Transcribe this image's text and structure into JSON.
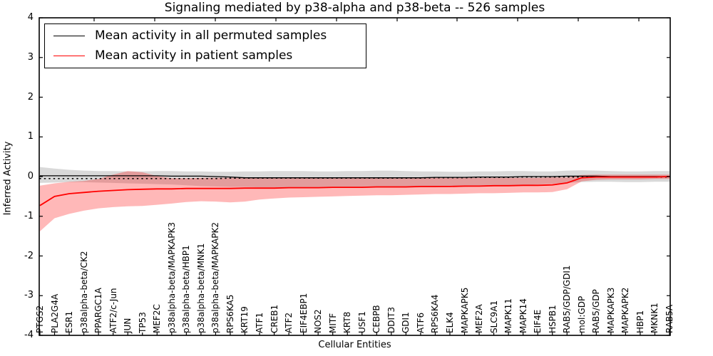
{
  "chart_data": {
    "type": "line",
    "title": "Signaling mediated by p38-alpha and p38-beta -- 526 samples",
    "xlabel": "Cellular Entities",
    "ylabel": "Inferred Activity",
    "ylim": [
      -4,
      4
    ],
    "yticks": [
      "4",
      "3",
      "2",
      "1",
      "0",
      "-1",
      "-2",
      "-3",
      "-4"
    ],
    "grid": false,
    "legend": {
      "position": "upper left",
      "entries": [
        {
          "label": "Mean activity in all permuted samples",
          "color": "#000000"
        },
        {
          "label": "Mean activity in patient samples",
          "color": "#ff0000"
        }
      ]
    },
    "categories": [
      "PTGS2",
      "PLA2G4A",
      "ESR1",
      "p38alpha-beta/CK2",
      "PPARGC1A",
      "ATF2/c-Jun",
      "JUN",
      "TP53",
      "MEF2C",
      "p38alpha-beta/MAPKAPK3",
      "p38alpha-beta/HBP1",
      "p38alpha-beta/MNK1",
      "p38alpha-beta/MAPKAPK2",
      "RPS6KA5",
      "KRT19",
      "ATF1",
      "CREB1",
      "ATF2",
      "EIF4EBP1",
      "NOS2",
      "MITF",
      "KRT8",
      "USF1",
      "CEBPB",
      "DDIT3",
      "GDI1",
      "ATF6",
      "RPS6KA4",
      "ELK4",
      "MAPKAPK5",
      "MEF2A",
      "SLC9A1",
      "MAPK11",
      "MAPK14",
      "EIF4E",
      "HSPB1",
      "RAB5/GDP/GDI1",
      "mol:GDP",
      "RAB5/GDP",
      "MAPKAPK3",
      "MAPKAPK2",
      "HBP1",
      "MKNK1",
      "RAB5A"
    ],
    "bands": [
      {
        "name": "permuted-samples-band",
        "fill": "rgba(128,128,128,0.30)",
        "upper": [
          0.24,
          0.2,
          0.17,
          0.15,
          0.14,
          0.14,
          0.13,
          0.13,
          0.14,
          0.14,
          0.13,
          0.13,
          0.12,
          0.12,
          0.13,
          0.13,
          0.14,
          0.14,
          0.14,
          0.13,
          0.13,
          0.14,
          0.14,
          0.15,
          0.15,
          0.14,
          0.13,
          0.13,
          0.12,
          0.12,
          0.13,
          0.13,
          0.14,
          0.14,
          0.13,
          0.13,
          0.15,
          0.16,
          0.15,
          0.14,
          0.13,
          0.13,
          0.14,
          0.14
        ],
        "lower": [
          -0.16,
          -0.15,
          -0.14,
          -0.14,
          -0.15,
          -0.16,
          -0.17,
          -0.18,
          -0.19,
          -0.2,
          -0.22,
          -0.24,
          -0.25,
          -0.26,
          -0.26,
          -0.27,
          -0.27,
          -0.27,
          -0.28,
          -0.28,
          -0.28,
          -0.28,
          -0.28,
          -0.28,
          -0.28,
          -0.28,
          -0.27,
          -0.27,
          -0.26,
          -0.26,
          -0.25,
          -0.24,
          -0.23,
          -0.22,
          -0.2,
          -0.18,
          -0.16,
          -0.14,
          -0.13,
          -0.13,
          -0.14,
          -0.14,
          -0.13,
          -0.13
        ]
      },
      {
        "name": "patient-samples-band",
        "fill": "rgba(255,0,0,0.28)",
        "upper": [
          -0.23,
          -0.17,
          -0.13,
          -0.11,
          -0.06,
          0.05,
          0.14,
          0.11,
          0.01,
          -0.04,
          -0.04,
          -0.03,
          -0.03,
          -0.03,
          -0.03,
          -0.03,
          -0.03,
          -0.03,
          -0.03,
          -0.03,
          -0.03,
          -0.03,
          -0.03,
          -0.03,
          -0.03,
          -0.03,
          -0.03,
          -0.03,
          -0.03,
          -0.03,
          -0.03,
          -0.03,
          -0.03,
          -0.03,
          -0.03,
          -0.02,
          -0.02,
          0.04,
          0.05,
          0.05,
          0.05,
          0.05,
          0.05,
          0.05
        ],
        "lower": [
          -1.38,
          -1.05,
          -0.94,
          -0.86,
          -0.8,
          -0.77,
          -0.75,
          -0.74,
          -0.71,
          -0.68,
          -0.64,
          -0.62,
          -0.63,
          -0.65,
          -0.63,
          -0.58,
          -0.55,
          -0.53,
          -0.52,
          -0.51,
          -0.5,
          -0.49,
          -0.48,
          -0.47,
          -0.47,
          -0.46,
          -0.45,
          -0.44,
          -0.44,
          -0.43,
          -0.42,
          -0.42,
          -0.41,
          -0.4,
          -0.4,
          -0.39,
          -0.32,
          -0.12,
          -0.08,
          -0.07,
          -0.07,
          -0.07,
          -0.06,
          -0.06
        ]
      }
    ],
    "lines": [
      {
        "name": "Mean activity in all permuted samples (dotted companion)",
        "id": "black-dotted-line",
        "color": "#000000",
        "width": 1.7,
        "style": "dotted",
        "values": [
          -0.05,
          -0.05,
          -0.05,
          -0.05,
          -0.05,
          -0.05,
          -0.05,
          -0.05,
          -0.05,
          -0.05,
          -0.05,
          -0.05,
          -0.05,
          -0.04,
          -0.04,
          -0.04,
          -0.04,
          -0.04,
          -0.04,
          -0.04,
          -0.04,
          -0.04,
          -0.04,
          -0.04,
          -0.04,
          -0.04,
          -0.04,
          -0.03,
          -0.03,
          -0.03,
          -0.02,
          -0.02,
          -0.02,
          -0.01,
          -0.01,
          -0.01,
          -0.01,
          -0.01,
          -0.01,
          -0.01,
          -0.01,
          -0.01,
          -0.01,
          -0.01
        ]
      },
      {
        "name": "Mean activity in all permuted samples",
        "id": "black-mean-line",
        "color": "#000000",
        "width": 1.3,
        "style": "solid",
        "values": [
          0.02,
          0.02,
          0.02,
          0.02,
          0.02,
          0.02,
          0.02,
          0.02,
          0.02,
          0.01,
          0.01,
          0.01,
          0.0,
          -0.01,
          -0.03,
          -0.03,
          -0.03,
          -0.03,
          -0.03,
          -0.03,
          -0.03,
          -0.03,
          -0.03,
          -0.03,
          -0.03,
          -0.03,
          -0.03,
          -0.02,
          -0.02,
          -0.02,
          -0.01,
          -0.01,
          -0.01,
          0.0,
          0.0,
          0.0,
          0.01,
          0.01,
          0.01,
          0.0,
          0.0,
          0.0,
          0.0,
          0.0
        ]
      },
      {
        "name": "Mean activity in patient samples",
        "id": "red-mean-line",
        "color": "#ff0000",
        "width": 1.8,
        "style": "solid",
        "values": [
          -0.73,
          -0.5,
          -0.43,
          -0.4,
          -0.37,
          -0.35,
          -0.33,
          -0.32,
          -0.31,
          -0.31,
          -0.3,
          -0.3,
          -0.3,
          -0.3,
          -0.29,
          -0.29,
          -0.29,
          -0.28,
          -0.28,
          -0.28,
          -0.27,
          -0.27,
          -0.27,
          -0.26,
          -0.26,
          -0.26,
          -0.25,
          -0.25,
          -0.25,
          -0.24,
          -0.24,
          -0.23,
          -0.23,
          -0.22,
          -0.22,
          -0.21,
          -0.16,
          -0.03,
          -0.01,
          -0.01,
          -0.01,
          -0.01,
          -0.01,
          0.0
        ]
      }
    ],
    "top_axis_tick_x": [
      132,
      217,
      302,
      387,
      472,
      557,
      641,
      726,
      811,
      896
    ]
  }
}
